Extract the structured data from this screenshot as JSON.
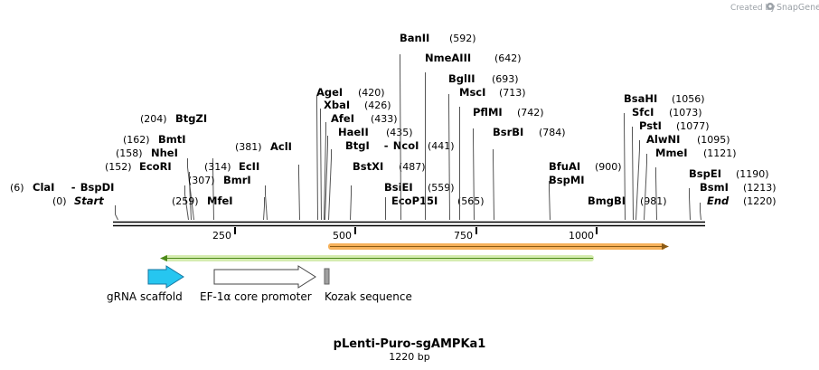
{
  "credit": {
    "prefix": "Created by",
    "brand": "SnapGene"
  },
  "plasmid": {
    "name": "pLenti-Puro-sgAMPKa1",
    "size_label": "1220 bp",
    "length": 1220
  },
  "ruler": {
    "ticks": [
      {
        "value": 250,
        "label": "250"
      },
      {
        "value": 500,
        "label": "500"
      },
      {
        "value": 750,
        "label": "750"
      },
      {
        "value": 1000,
        "label": "1000"
      }
    ]
  },
  "sites": [
    {
      "id": "clai-bspdi",
      "parts": [
        "ClaI",
        "BspDI"
      ],
      "pos_label": "(6)",
      "pos": 6
    },
    {
      "id": "start",
      "parts": [
        "Start"
      ],
      "pos_label": "(0)",
      "pos": 0,
      "italic": true
    },
    {
      "id": "btgzi",
      "parts": [
        "BtgZI"
      ],
      "pos_label": "(204)",
      "pos": 204
    },
    {
      "id": "bmti",
      "parts": [
        "BmtI"
      ],
      "pos_label": "(162)",
      "pos": 162
    },
    {
      "id": "nhei",
      "parts": [
        "NheI"
      ],
      "pos_label": "(158)",
      "pos": 158
    },
    {
      "id": "ecori",
      "parts": [
        "EcoRI"
      ],
      "pos_label": "(152)",
      "pos": 152
    },
    {
      "id": "ecli",
      "parts": [
        "EcII"
      ],
      "pos_label": "(314)",
      "pos": 314
    },
    {
      "id": "bmri",
      "parts": [
        "BmrI"
      ],
      "pos_label": "(307)",
      "pos": 307
    },
    {
      "id": "mfei",
      "parts": [
        "MfeI"
      ],
      "pos_label": "(259)",
      "pos": 259
    },
    {
      "id": "acli",
      "parts": [
        "AclI"
      ],
      "pos_label": "(381)",
      "pos": 381
    },
    {
      "id": "agei",
      "parts": [
        "AgeI"
      ],
      "pos_label": "(420)",
      "pos": 420
    },
    {
      "id": "xbai",
      "parts": [
        "XbaI"
      ],
      "pos_label": "(426)",
      "pos": 426
    },
    {
      "id": "afei",
      "parts": [
        "AfeI"
      ],
      "pos_label": "(433)",
      "pos": 433
    },
    {
      "id": "haeii",
      "parts": [
        "HaeII"
      ],
      "pos_label": "(435)",
      "pos": 435
    },
    {
      "id": "btgi-ncoi",
      "parts": [
        "BtgI",
        "NcoI"
      ],
      "pos_label": "(441)",
      "pos": 441
    },
    {
      "id": "bstxi",
      "parts": [
        "BstXI"
      ],
      "pos_label": "(487)",
      "pos": 487
    },
    {
      "id": "bsiei",
      "parts": [
        "BsiEI"
      ],
      "pos_label": "(559)",
      "pos": 559
    },
    {
      "id": "ecop15i",
      "parts": [
        "EcoP15I"
      ],
      "pos_label": "(565)",
      "pos": 565
    },
    {
      "id": "banii",
      "parts": [
        "BanII"
      ],
      "pos_label": "(592)",
      "pos": 592
    },
    {
      "id": "nmeaiii",
      "parts": [
        "NmeAIII"
      ],
      "pos_label": "(642)",
      "pos": 642
    },
    {
      "id": "bglii",
      "parts": [
        "BglII"
      ],
      "pos_label": "(693)",
      "pos": 693
    },
    {
      "id": "msci",
      "parts": [
        "MscI"
      ],
      "pos_label": "(713)",
      "pos": 713
    },
    {
      "id": "pflmi",
      "parts": [
        "PflMI"
      ],
      "pos_label": "(742)",
      "pos": 742
    },
    {
      "id": "bsrbi",
      "parts": [
        "BsrBI"
      ],
      "pos_label": "(784)",
      "pos": 784
    },
    {
      "id": "bfuai",
      "parts": [
        "BfuAI"
      ],
      "pos_label": "(900)",
      "pos": 900
    },
    {
      "id": "bspmi",
      "parts": [
        "BspMI"
      ],
      "pos_label": "",
      "pos": 900
    },
    {
      "id": "bmgbi",
      "parts": [
        "BmgBI"
      ],
      "pos_label": "(981)",
      "pos": 981
    },
    {
      "id": "bsahi",
      "parts": [
        "BsaHI"
      ],
      "pos_label": "(1056)",
      "pos": 1056
    },
    {
      "id": "sfci",
      "parts": [
        "SfcI"
      ],
      "pos_label": "(1073)",
      "pos": 1073
    },
    {
      "id": "psti",
      "parts": [
        "PstI"
      ],
      "pos_label": "(1077)",
      "pos": 1077
    },
    {
      "id": "alwni",
      "parts": [
        "AlwNI"
      ],
      "pos_label": "(1095)",
      "pos": 1095
    },
    {
      "id": "mmei",
      "parts": [
        "MmeI"
      ],
      "pos_label": "(1121)",
      "pos": 1121
    },
    {
      "id": "bspei",
      "parts": [
        "BspEI"
      ],
      "pos_label": "(1190)",
      "pos": 1190
    },
    {
      "id": "bsmi",
      "parts": [
        "BsmI"
      ],
      "pos_label": "(1213)",
      "pos": 1213
    },
    {
      "id": "end",
      "parts": [
        "End"
      ],
      "pos_label": "(1220)",
      "pos": 1220,
      "italic": true
    }
  ],
  "features": [
    {
      "id": "grna-scaffold",
      "label": "gRNA scaffold",
      "color": "#26c6f0"
    },
    {
      "id": "ef1a-core-promoter",
      "label": "EF-1α core promoter",
      "color": "#ffffff"
    },
    {
      "id": "kozak-sequence",
      "label": "Kozak sequence",
      "color": "#a0a0a0"
    }
  ],
  "colors": {
    "orange_bar": "#f6b15a",
    "green_bar": "#d5ecb0",
    "backbone": "#000000"
  }
}
